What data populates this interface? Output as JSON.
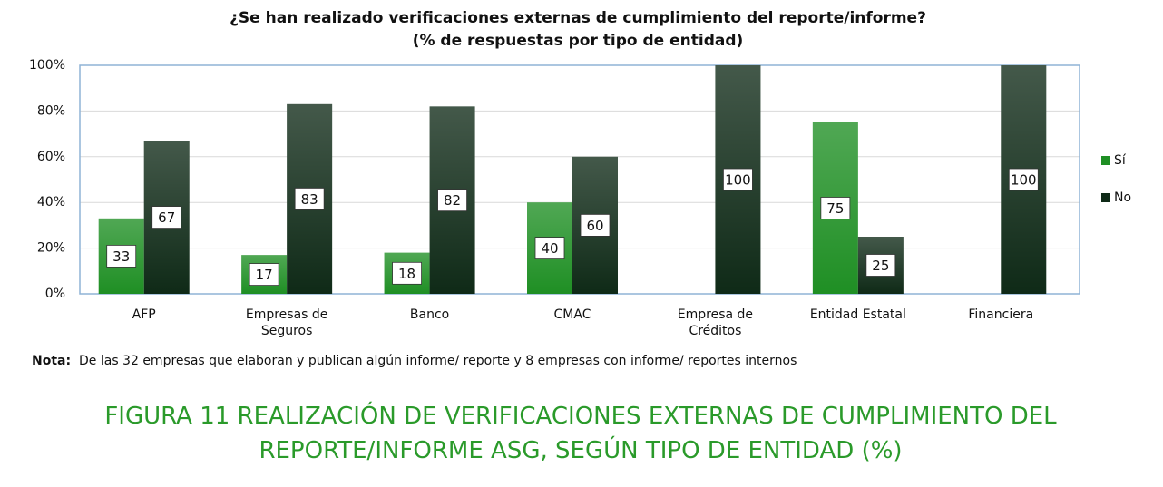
{
  "chart_data": {
    "type": "bar",
    "title": "¿Se han realizado verificaciones externas de cumplimiento del reporte/informe?",
    "subtitle": "(% de respuestas por tipo de entidad)",
    "categories": [
      "AFP",
      "Empresas de Seguros",
      "Banco",
      "CMAC",
      "Empresa de Créditos",
      "Entidad Estatal",
      "Financiera"
    ],
    "series": [
      {
        "name": "Sí",
        "color": "#1f8f24",
        "values": [
          33,
          17,
          18,
          40,
          null,
          75,
          null
        ]
      },
      {
        "name": "No",
        "color": "#0f2a17",
        "values": [
          67,
          83,
          82,
          60,
          100,
          25,
          100
        ]
      }
    ],
    "ylim": [
      0,
      100
    ],
    "yticks": [
      {
        "value": 0,
        "label": "0%"
      },
      {
        "value": 20,
        "label": "20%"
      },
      {
        "value": 40,
        "label": "40%"
      },
      {
        "value": 60,
        "label": "60%"
      },
      {
        "value": 80,
        "label": "80%"
      },
      {
        "value": 100,
        "label": "100%"
      }
    ],
    "grid": true,
    "legend": "right",
    "note_label": "Nota:",
    "note": "De las 32 empresas que elaboran y publican algún informe/ reporte y 8 empresas con informe/ reportes internos"
  },
  "figure_caption": "FIGURA 11 REALIZACIÓN DE VERIFICACIONES EXTERNAS DE CUMPLIMIENTO DEL REPORTE/INFORME ASG, SEGÚN TIPO DE ENTIDAD (%)"
}
